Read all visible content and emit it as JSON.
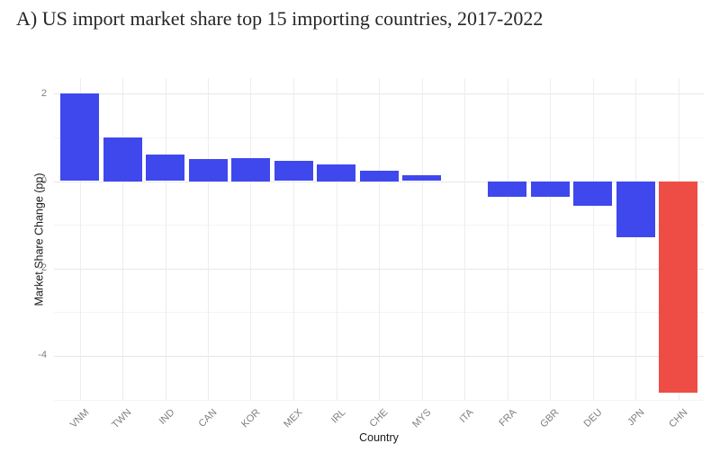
{
  "page": {
    "background": "#ffffff"
  },
  "chart_data": {
    "type": "bar",
    "title": "A) US import market share top 15 importing countries, 2017-2022",
    "xlabel": "Country",
    "ylabel": "Market Share Change (pp)",
    "categories": [
      "VNM",
      "TWN",
      "IND",
      "CAN",
      "KOR",
      "MEX",
      "IRL",
      "CHE",
      "MYS",
      "ITA",
      "FRA",
      "GBR",
      "DEU",
      "JPN",
      "CHN"
    ],
    "values": [
      2.0,
      1.0,
      0.6,
      0.51,
      0.53,
      0.46,
      0.39,
      0.25,
      0.13,
      0.0,
      -0.34,
      -0.34,
      -0.55,
      -1.27,
      -4.83
    ],
    "ylim": [
      -5.03,
      2.36
    ],
    "yticks_major": [
      2,
      0,
      -2,
      -4
    ],
    "yticks_minor": [
      1,
      -1,
      -3,
      -5
    ],
    "grid": "major and minor horizontal gridlines plus vertical gridline at each category, light gray on white",
    "legend": "none",
    "default_bar_color": "#3f48ec",
    "highlight": {
      "category": "CHN",
      "color": "#ee4d45"
    }
  },
  "colors": {
    "bar_blue": "#3f48ec",
    "bar_red": "#ee4d45",
    "grid_major": "#e7e7e7",
    "grid_minor": "#f4f4f4",
    "tick_text": "#7f7f7f",
    "axis_title_text": "#1a1a1a",
    "title_text": "#262626"
  }
}
